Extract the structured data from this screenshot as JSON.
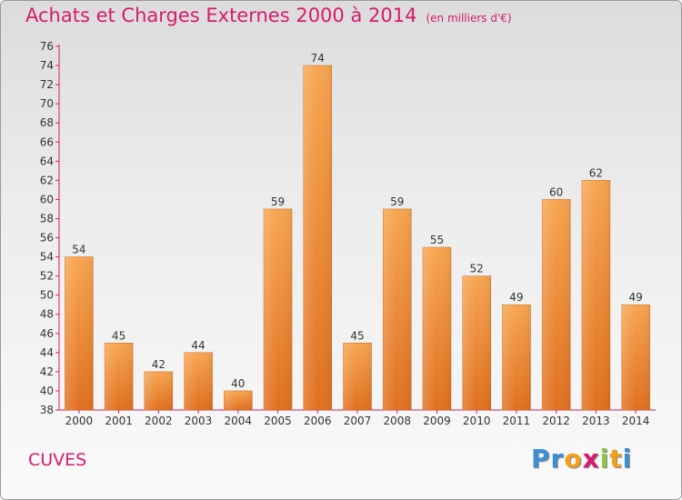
{
  "chart_data": {
    "type": "bar",
    "title": "Achats et Charges Externes 2000 à 2014",
    "subtitle": "(en milliers d'€)",
    "categories": [
      "2000",
      "2001",
      "2002",
      "2003",
      "2004",
      "2005",
      "2006",
      "2007",
      "2008",
      "2009",
      "2010",
      "2011",
      "2012",
      "2013",
      "2014"
    ],
    "values": [
      54,
      45,
      42,
      44,
      40,
      59,
      74,
      45,
      59,
      55,
      52,
      49,
      60,
      62,
      49
    ],
    "ylim": [
      38,
      76
    ],
    "yticks": [
      38,
      40,
      42,
      44,
      46,
      48,
      50,
      52,
      54,
      56,
      58,
      60,
      62,
      64,
      66,
      68,
      70,
      72,
      74,
      76
    ],
    "grid": false,
    "bar_color": "#f08a2e",
    "axis_color": "#d81a6c"
  },
  "commune": "CUVES",
  "logo": {
    "letters": [
      "P",
      "r",
      "o",
      "x",
      "i",
      "t",
      "i"
    ],
    "colors": [
      "#3b8fd4",
      "#3b8fd4",
      "#f0a020",
      "#d81a6c",
      "#8cc63f",
      "#f0a020",
      "#3b8fd4"
    ]
  }
}
